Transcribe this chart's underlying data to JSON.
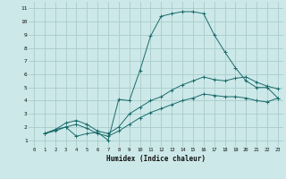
{
  "background_color": "#cce8e8",
  "grid_color": "#aacccc",
  "line_color": "#1a6b6b",
  "xlabel": "Humidex (Indice chaleur)",
  "xlim": [
    -0.5,
    23.5
  ],
  "ylim": [
    0.5,
    11.5
  ],
  "xticks": [
    0,
    1,
    2,
    3,
    4,
    5,
    6,
    7,
    8,
    9,
    10,
    11,
    12,
    13,
    14,
    15,
    16,
    17,
    18,
    19,
    20,
    21,
    22,
    23
  ],
  "yticks": [
    1,
    2,
    3,
    4,
    5,
    6,
    7,
    8,
    9,
    10,
    11
  ],
  "series1_x": [
    1,
    2,
    3,
    4,
    5,
    6,
    7,
    8,
    9,
    10,
    11,
    12,
    13,
    14,
    15,
    16,
    17,
    18,
    19,
    20,
    21,
    22,
    23
  ],
  "series1_y": [
    1.5,
    1.8,
    2.0,
    1.3,
    1.5,
    1.6,
    1.0,
    4.1,
    4.0,
    6.3,
    8.9,
    10.4,
    10.6,
    10.75,
    10.75,
    10.6,
    9.0,
    7.7,
    6.5,
    5.5,
    5.0,
    5.0,
    4.2
  ],
  "series2_x": [
    1,
    2,
    3,
    4,
    5,
    6,
    7,
    8,
    9,
    10,
    11,
    12,
    13,
    14,
    15,
    16,
    17,
    18,
    19,
    20,
    21,
    22,
    23
  ],
  "series2_y": [
    1.5,
    1.8,
    2.3,
    2.5,
    2.2,
    1.7,
    1.5,
    2.0,
    3.0,
    3.5,
    4.0,
    4.3,
    4.8,
    5.2,
    5.5,
    5.8,
    5.6,
    5.5,
    5.7,
    5.8,
    5.4,
    5.1,
    4.9
  ],
  "series3_x": [
    1,
    2,
    3,
    4,
    5,
    6,
    7,
    8,
    9,
    10,
    11,
    12,
    13,
    14,
    15,
    16,
    17,
    18,
    19,
    20,
    21,
    22,
    23
  ],
  "series3_y": [
    1.5,
    1.7,
    2.0,
    2.2,
    1.9,
    1.5,
    1.3,
    1.7,
    2.2,
    2.7,
    3.1,
    3.4,
    3.7,
    4.0,
    4.2,
    4.5,
    4.4,
    4.3,
    4.3,
    4.2,
    4.0,
    3.9,
    4.2
  ]
}
